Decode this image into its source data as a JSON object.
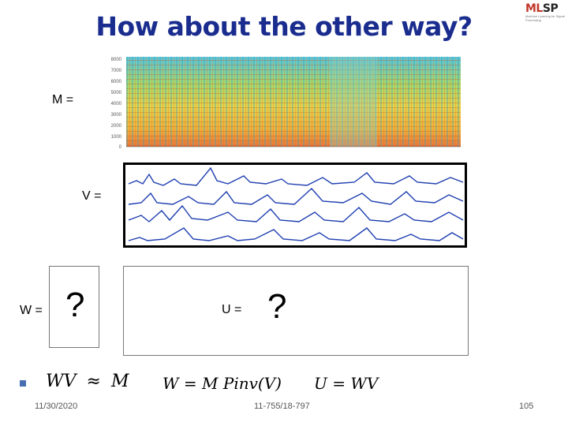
{
  "slide": {
    "title": "How about the other way?",
    "labels": {
      "m": "M =",
      "v": "V =",
      "w": "W =",
      "u": "U ="
    },
    "question_mark": "?",
    "equations": {
      "eq1_lhs": "WV",
      "eq1_op": "≈",
      "eq1_rhs": "M",
      "eq2": "W = M Pinv(V)",
      "eq3": "U = WV"
    },
    "footer": {
      "date": "11/30/2020",
      "course": "11-755/18-797",
      "page": "105"
    },
    "logo": {
      "text_main": "MLSP",
      "text_sub": "Machine Learning for Signal Processing"
    },
    "spectrogram_y_ticks": [
      "8000",
      "7000",
      "6000",
      "5000",
      "4000",
      "3000",
      "2000",
      "1000",
      "0"
    ],
    "colors": {
      "title": "#1a2d8f",
      "bullet": "#4a6fb0",
      "curve": "#1f3fb0"
    }
  }
}
